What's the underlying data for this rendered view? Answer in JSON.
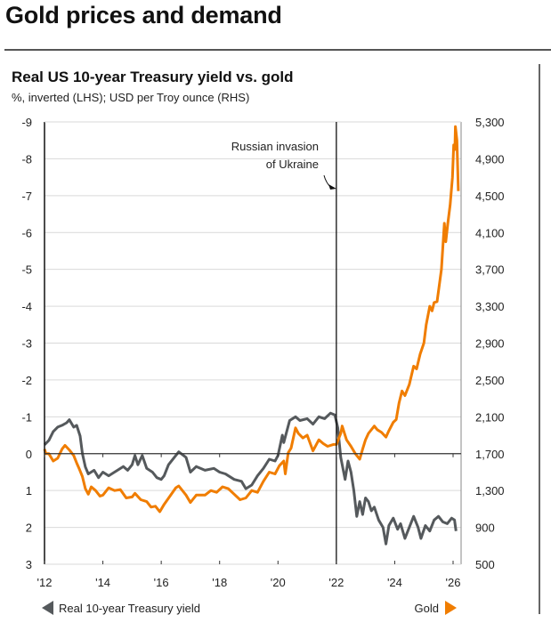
{
  "header": {
    "title": "Gold prices and demand"
  },
  "chart_data": {
    "type": "line",
    "title": "Real US 10-year Treasury yield vs. gold",
    "subtitle": "%, inverted (LHS); USD per Troy ounce (RHS)",
    "xlabel": "",
    "x_ticks": [
      {
        "value": 2012,
        "label": "'12"
      },
      {
        "value": 2014,
        "label": "'14"
      },
      {
        "value": 2016,
        "label": "'16"
      },
      {
        "value": 2018,
        "label": "'18"
      },
      {
        "value": 2020,
        "label": "'20"
      },
      {
        "value": 2022,
        "label": "'22"
      },
      {
        "value": 2024,
        "label": "'24"
      },
      {
        "value": 2026,
        "label": "'26"
      }
    ],
    "xlim": [
      2012,
      2026.28
    ],
    "left_axis": {
      "label": "%, inverted",
      "inverted": true,
      "ylim": [
        -9,
        3
      ],
      "ticks": [
        "-9",
        "-8",
        "-7",
        "-6",
        "-5",
        "-4",
        "-3",
        "-2",
        "-1",
        "0",
        "1",
        "2",
        "3"
      ]
    },
    "right_axis": {
      "label": "USD per Troy ounce",
      "ylim": [
        500,
        5300
      ],
      "ticks": [
        "5,300",
        "4,900",
        "4,500",
        "4,100",
        "3,700",
        "3,300",
        "2,900",
        "2,500",
        "2,100",
        "1,700",
        "1,300",
        "900",
        "500"
      ]
    },
    "grid": true,
    "annotation": {
      "text_line1": "Russian invasion",
      "text_line2": "of Ukraine",
      "x": 2022.0
    },
    "series": [
      {
        "name": "Real 10-year Treasury yield",
        "axis": "left",
        "color": "#55595C",
        "points": [
          [
            2012.0,
            -0.24
          ],
          [
            2012.15,
            -0.36
          ],
          [
            2012.3,
            -0.6
          ],
          [
            2012.45,
            -0.72
          ],
          [
            2012.6,
            -0.77
          ],
          [
            2012.76,
            -0.84
          ],
          [
            2012.85,
            -0.92
          ],
          [
            2013.0,
            -0.72
          ],
          [
            2013.1,
            -0.77
          ],
          [
            2013.22,
            -0.48
          ],
          [
            2013.3,
            0.0
          ],
          [
            2013.4,
            0.36
          ],
          [
            2013.5,
            0.55
          ],
          [
            2013.7,
            0.45
          ],
          [
            2013.85,
            0.65
          ],
          [
            2014.0,
            0.5
          ],
          [
            2014.2,
            0.6
          ],
          [
            2014.5,
            0.45
          ],
          [
            2014.7,
            0.35
          ],
          [
            2014.85,
            0.45
          ],
          [
            2015.0,
            0.3
          ],
          [
            2015.1,
            0.05
          ],
          [
            2015.2,
            0.3
          ],
          [
            2015.35,
            0.05
          ],
          [
            2015.5,
            0.4
          ],
          [
            2015.7,
            0.5
          ],
          [
            2015.85,
            0.65
          ],
          [
            2016.0,
            0.7
          ],
          [
            2016.1,
            0.6
          ],
          [
            2016.25,
            0.3
          ],
          [
            2016.5,
            0.05
          ],
          [
            2016.6,
            -0.05
          ],
          [
            2016.85,
            0.1
          ],
          [
            2017.0,
            0.5
          ],
          [
            2017.2,
            0.35
          ],
          [
            2017.5,
            0.45
          ],
          [
            2017.8,
            0.4
          ],
          [
            2018.0,
            0.5
          ],
          [
            2018.2,
            0.55
          ],
          [
            2018.5,
            0.7
          ],
          [
            2018.75,
            0.75
          ],
          [
            2018.9,
            0.95
          ],
          [
            2019.1,
            0.85
          ],
          [
            2019.3,
            0.6
          ],
          [
            2019.5,
            0.4
          ],
          [
            2019.7,
            0.15
          ],
          [
            2019.9,
            0.2
          ],
          [
            2020.0,
            0.05
          ],
          [
            2020.15,
            -0.5
          ],
          [
            2020.2,
            -0.3
          ],
          [
            2020.4,
            -0.9
          ],
          [
            2020.6,
            -1.0
          ],
          [
            2020.75,
            -0.9
          ],
          [
            2021.0,
            -0.95
          ],
          [
            2021.2,
            -0.8
          ],
          [
            2021.4,
            -1.0
          ],
          [
            2021.6,
            -0.95
          ],
          [
            2021.8,
            -1.1
          ],
          [
            2021.95,
            -1.05
          ],
          [
            2022.05,
            -0.7
          ],
          [
            2022.15,
            0.1
          ],
          [
            2022.3,
            0.7
          ],
          [
            2022.4,
            0.2
          ],
          [
            2022.5,
            0.5
          ],
          [
            2022.6,
            1.0
          ],
          [
            2022.7,
            1.7
          ],
          [
            2022.8,
            1.3
          ],
          [
            2022.9,
            1.65
          ],
          [
            2023.0,
            1.2
          ],
          [
            2023.1,
            1.3
          ],
          [
            2023.2,
            1.55
          ],
          [
            2023.3,
            1.45
          ],
          [
            2023.45,
            1.8
          ],
          [
            2023.6,
            2.0
          ],
          [
            2023.7,
            2.45
          ],
          [
            2023.8,
            1.95
          ],
          [
            2023.95,
            1.75
          ],
          [
            2024.1,
            2.05
          ],
          [
            2024.2,
            1.9
          ],
          [
            2024.35,
            2.3
          ],
          [
            2024.5,
            2.0
          ],
          [
            2024.65,
            1.7
          ],
          [
            2024.8,
            2.0
          ],
          [
            2024.9,
            2.3
          ],
          [
            2025.05,
            1.95
          ],
          [
            2025.2,
            2.1
          ],
          [
            2025.35,
            1.8
          ],
          [
            2025.5,
            1.7
          ],
          [
            2025.65,
            1.85
          ],
          [
            2025.8,
            1.9
          ],
          [
            2025.95,
            1.75
          ],
          [
            2026.05,
            1.8
          ],
          [
            2026.1,
            2.1
          ]
        ]
      },
      {
        "name": "Gold",
        "axis": "right",
        "color": "#F07D00",
        "points": [
          [
            2012.0,
            1750
          ],
          [
            2012.05,
            1700
          ],
          [
            2012.15,
            1700
          ],
          [
            2012.3,
            1620
          ],
          [
            2012.45,
            1650
          ],
          [
            2012.6,
            1750
          ],
          [
            2012.7,
            1790
          ],
          [
            2012.85,
            1740
          ],
          [
            2013.0,
            1680
          ],
          [
            2013.1,
            1600
          ],
          [
            2013.2,
            1530
          ],
          [
            2013.3,
            1450
          ],
          [
            2013.4,
            1320
          ],
          [
            2013.5,
            1260
          ],
          [
            2013.6,
            1340
          ],
          [
            2013.75,
            1300
          ],
          [
            2013.9,
            1240
          ],
          [
            2014.0,
            1250
          ],
          [
            2014.2,
            1330
          ],
          [
            2014.4,
            1300
          ],
          [
            2014.6,
            1310
          ],
          [
            2014.8,
            1220
          ],
          [
            2015.0,
            1230
          ],
          [
            2015.1,
            1270
          ],
          [
            2015.3,
            1200
          ],
          [
            2015.5,
            1180
          ],
          [
            2015.65,
            1120
          ],
          [
            2015.8,
            1130
          ],
          [
            2015.95,
            1070
          ],
          [
            2016.1,
            1150
          ],
          [
            2016.3,
            1240
          ],
          [
            2016.5,
            1330
          ],
          [
            2016.6,
            1350
          ],
          [
            2016.85,
            1250
          ],
          [
            2017.0,
            1170
          ],
          [
            2017.2,
            1250
          ],
          [
            2017.5,
            1250
          ],
          [
            2017.7,
            1300
          ],
          [
            2017.9,
            1280
          ],
          [
            2018.1,
            1340
          ],
          [
            2018.3,
            1320
          ],
          [
            2018.5,
            1260
          ],
          [
            2018.7,
            1200
          ],
          [
            2018.9,
            1220
          ],
          [
            2019.1,
            1300
          ],
          [
            2019.3,
            1280
          ],
          [
            2019.5,
            1400
          ],
          [
            2019.7,
            1500
          ],
          [
            2019.9,
            1480
          ],
          [
            2020.05,
            1570
          ],
          [
            2020.2,
            1620
          ],
          [
            2020.25,
            1480
          ],
          [
            2020.35,
            1710
          ],
          [
            2020.45,
            1760
          ],
          [
            2020.6,
            1980
          ],
          [
            2020.7,
            1920
          ],
          [
            2020.85,
            1870
          ],
          [
            2021.0,
            1900
          ],
          [
            2021.2,
            1730
          ],
          [
            2021.4,
            1850
          ],
          [
            2021.55,
            1810
          ],
          [
            2021.7,
            1780
          ],
          [
            2021.9,
            1800
          ],
          [
            2022.0,
            1800
          ],
          [
            2022.15,
            1920
          ],
          [
            2022.2,
            2000
          ],
          [
            2022.35,
            1850
          ],
          [
            2022.5,
            1780
          ],
          [
            2022.65,
            1700
          ],
          [
            2022.8,
            1640
          ],
          [
            2022.9,
            1750
          ],
          [
            2023.0,
            1850
          ],
          [
            2023.1,
            1920
          ],
          [
            2023.3,
            2000
          ],
          [
            2023.4,
            1960
          ],
          [
            2023.55,
            1930
          ],
          [
            2023.7,
            1880
          ],
          [
            2023.8,
            1950
          ],
          [
            2023.95,
            2040
          ],
          [
            2024.05,
            2070
          ],
          [
            2024.15,
            2250
          ],
          [
            2024.25,
            2380
          ],
          [
            2024.35,
            2330
          ],
          [
            2024.5,
            2450
          ],
          [
            2024.65,
            2650
          ],
          [
            2024.75,
            2620
          ],
          [
            2024.87,
            2780
          ],
          [
            2025.0,
            2900
          ],
          [
            2025.08,
            3100
          ],
          [
            2025.2,
            3300
          ],
          [
            2025.28,
            3250
          ],
          [
            2025.35,
            3340
          ],
          [
            2025.45,
            3350
          ],
          [
            2025.6,
            3700
          ],
          [
            2025.7,
            4200
          ],
          [
            2025.75,
            4000
          ],
          [
            2025.82,
            4200
          ],
          [
            2025.9,
            4400
          ],
          [
            2025.98,
            4700
          ],
          [
            2026.02,
            5050
          ],
          [
            2026.06,
            5000
          ],
          [
            2026.08,
            5250
          ],
          [
            2026.13,
            5100
          ],
          [
            2026.18,
            4550
          ]
        ]
      }
    ],
    "legend": {
      "left": {
        "label": "Real 10-year Treasury yield",
        "marker": "left-triangle",
        "color": "#55595C",
        "placement": "bottom-left"
      },
      "right": {
        "label": "Gold",
        "marker": "right-triangle",
        "color": "#F07D00",
        "placement": "bottom-right"
      }
    }
  }
}
